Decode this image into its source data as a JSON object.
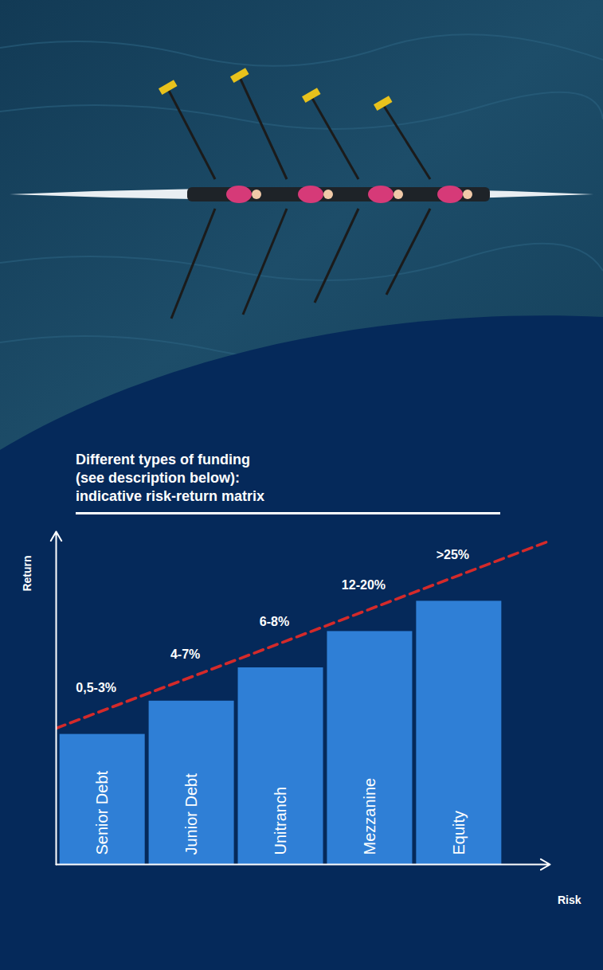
{
  "chart_data": {
    "type": "bar",
    "title": "Different types of funding\n(see description below):\nindicative risk-return matrix",
    "categories": [
      "Senior Debt",
      "Junior Debt",
      "Unitranch",
      "Mezzanine",
      "Equity"
    ],
    "values": [
      4.3,
      5.4,
      6.5,
      7.7,
      8.7
    ],
    "annotations": [
      "0,5-3%",
      "4-7%",
      "6-8%",
      "12-20%",
      ">25%"
    ],
    "color": "#2f7fd6",
    "ylim": [
      0,
      11
    ],
    "x_label": "Risk",
    "y_label": "Return",
    "tick_labels": false,
    "grid": false,
    "trend": {
      "values": [
        4.5,
        10.7
      ],
      "color": "#d42a2a",
      "line_style": "dashed"
    }
  }
}
